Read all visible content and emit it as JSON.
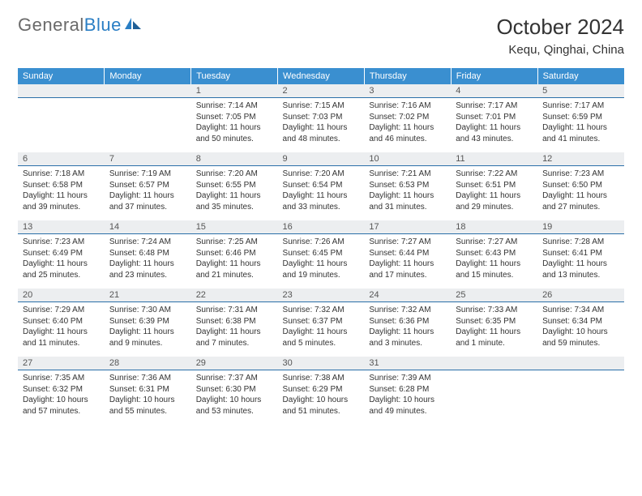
{
  "logo": {
    "text1": "General",
    "text2": "Blue"
  },
  "title": "October 2024",
  "location": "Kequ, Qinghai, China",
  "colors": {
    "header_bg": "#3a8fd0",
    "header_text": "#ffffff",
    "num_bg": "#eceef0",
    "num_border": "#2a6fa8",
    "body_bg": "#ffffff",
    "text": "#333333",
    "logo_gray": "#6a6a6a",
    "logo_blue": "#2a7ec4"
  },
  "fonts": {
    "title_pt": 26,
    "location_pt": 15,
    "dow_pt": 11,
    "num_pt": 11,
    "cell_pt": 10
  },
  "days_of_week": [
    "Sunday",
    "Monday",
    "Tuesday",
    "Wednesday",
    "Thursday",
    "Friday",
    "Saturday"
  ],
  "weeks": [
    {
      "nums": [
        "",
        "",
        "1",
        "2",
        "3",
        "4",
        "5"
      ],
      "cells": [
        null,
        null,
        {
          "sunrise": "7:14 AM",
          "sunset": "7:05 PM",
          "daylight": "11 hours and 50 minutes."
        },
        {
          "sunrise": "7:15 AM",
          "sunset": "7:03 PM",
          "daylight": "11 hours and 48 minutes."
        },
        {
          "sunrise": "7:16 AM",
          "sunset": "7:02 PM",
          "daylight": "11 hours and 46 minutes."
        },
        {
          "sunrise": "7:17 AM",
          "sunset": "7:01 PM",
          "daylight": "11 hours and 43 minutes."
        },
        {
          "sunrise": "7:17 AM",
          "sunset": "6:59 PM",
          "daylight": "11 hours and 41 minutes."
        }
      ]
    },
    {
      "nums": [
        "6",
        "7",
        "8",
        "9",
        "10",
        "11",
        "12"
      ],
      "cells": [
        {
          "sunrise": "7:18 AM",
          "sunset": "6:58 PM",
          "daylight": "11 hours and 39 minutes."
        },
        {
          "sunrise": "7:19 AM",
          "sunset": "6:57 PM",
          "daylight": "11 hours and 37 minutes."
        },
        {
          "sunrise": "7:20 AM",
          "sunset": "6:55 PM",
          "daylight": "11 hours and 35 minutes."
        },
        {
          "sunrise": "7:20 AM",
          "sunset": "6:54 PM",
          "daylight": "11 hours and 33 minutes."
        },
        {
          "sunrise": "7:21 AM",
          "sunset": "6:53 PM",
          "daylight": "11 hours and 31 minutes."
        },
        {
          "sunrise": "7:22 AM",
          "sunset": "6:51 PM",
          "daylight": "11 hours and 29 minutes."
        },
        {
          "sunrise": "7:23 AM",
          "sunset": "6:50 PM",
          "daylight": "11 hours and 27 minutes."
        }
      ]
    },
    {
      "nums": [
        "13",
        "14",
        "15",
        "16",
        "17",
        "18",
        "19"
      ],
      "cells": [
        {
          "sunrise": "7:23 AM",
          "sunset": "6:49 PM",
          "daylight": "11 hours and 25 minutes."
        },
        {
          "sunrise": "7:24 AM",
          "sunset": "6:48 PM",
          "daylight": "11 hours and 23 minutes."
        },
        {
          "sunrise": "7:25 AM",
          "sunset": "6:46 PM",
          "daylight": "11 hours and 21 minutes."
        },
        {
          "sunrise": "7:26 AM",
          "sunset": "6:45 PM",
          "daylight": "11 hours and 19 minutes."
        },
        {
          "sunrise": "7:27 AM",
          "sunset": "6:44 PM",
          "daylight": "11 hours and 17 minutes."
        },
        {
          "sunrise": "7:27 AM",
          "sunset": "6:43 PM",
          "daylight": "11 hours and 15 minutes."
        },
        {
          "sunrise": "7:28 AM",
          "sunset": "6:41 PM",
          "daylight": "11 hours and 13 minutes."
        }
      ]
    },
    {
      "nums": [
        "20",
        "21",
        "22",
        "23",
        "24",
        "25",
        "26"
      ],
      "cells": [
        {
          "sunrise": "7:29 AM",
          "sunset": "6:40 PM",
          "daylight": "11 hours and 11 minutes."
        },
        {
          "sunrise": "7:30 AM",
          "sunset": "6:39 PM",
          "daylight": "11 hours and 9 minutes."
        },
        {
          "sunrise": "7:31 AM",
          "sunset": "6:38 PM",
          "daylight": "11 hours and 7 minutes."
        },
        {
          "sunrise": "7:32 AM",
          "sunset": "6:37 PM",
          "daylight": "11 hours and 5 minutes."
        },
        {
          "sunrise": "7:32 AM",
          "sunset": "6:36 PM",
          "daylight": "11 hours and 3 minutes."
        },
        {
          "sunrise": "7:33 AM",
          "sunset": "6:35 PM",
          "daylight": "11 hours and 1 minute."
        },
        {
          "sunrise": "7:34 AM",
          "sunset": "6:34 PM",
          "daylight": "10 hours and 59 minutes."
        }
      ]
    },
    {
      "nums": [
        "27",
        "28",
        "29",
        "30",
        "31",
        "",
        ""
      ],
      "cells": [
        {
          "sunrise": "7:35 AM",
          "sunset": "6:32 PM",
          "daylight": "10 hours and 57 minutes."
        },
        {
          "sunrise": "7:36 AM",
          "sunset": "6:31 PM",
          "daylight": "10 hours and 55 minutes."
        },
        {
          "sunrise": "7:37 AM",
          "sunset": "6:30 PM",
          "daylight": "10 hours and 53 minutes."
        },
        {
          "sunrise": "7:38 AM",
          "sunset": "6:29 PM",
          "daylight": "10 hours and 51 minutes."
        },
        {
          "sunrise": "7:39 AM",
          "sunset": "6:28 PM",
          "daylight": "10 hours and 49 minutes."
        },
        null,
        null
      ]
    }
  ],
  "labels": {
    "sunrise": "Sunrise:",
    "sunset": "Sunset:",
    "daylight": "Daylight:"
  }
}
